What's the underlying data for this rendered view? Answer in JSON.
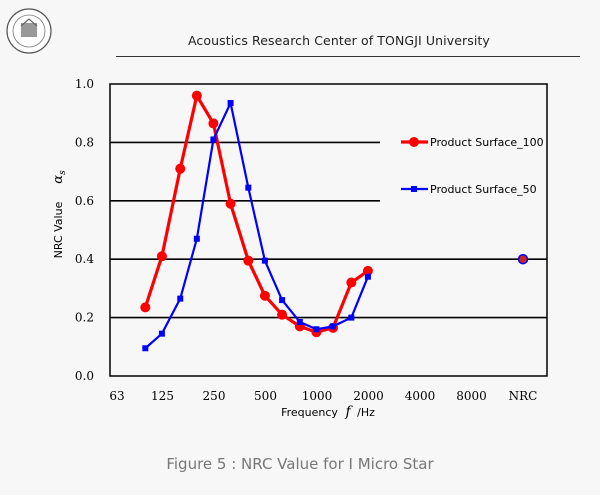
{
  "header": {
    "title": "Acoustics Research Center of TONGJI University",
    "logo_text": "TONGJI UNIVERSITY"
  },
  "caption": "Figure 5 : NRC Value for I Micro Star",
  "colors": {
    "series_100": "#ff0000",
    "series_50": "#0000ff",
    "nrc_point": "#0000ff",
    "nrc_point_fill": "#cc2222",
    "grid": "#000000"
  },
  "chart_data": {
    "type": "line",
    "xlabel_prefix": "Frequency",
    "xlabel_var": "f",
    "xlabel_unit": "/Hz",
    "ylabel": "NRC Value",
    "ylabel_symbol": "α",
    "ylabel_sub": "s",
    "ylim": [
      0,
      1.0
    ],
    "y_ticks": [
      "0.0",
      "0.2",
      "0.4",
      "0.6",
      "0.8",
      "1.0"
    ],
    "x_ticks": [
      "63",
      "125",
      "250",
      "500",
      "1000",
      "2000",
      "4000",
      "8000",
      "NRC"
    ],
    "grid": "horizontal",
    "legend_position": "right",
    "series": [
      {
        "name": "Product Surface_100",
        "marker": "circle",
        "x": [
          100,
          125,
          160,
          200,
          250,
          315,
          400,
          500,
          630,
          800,
          1000,
          1250,
          1600,
          2000
        ],
        "values": [
          0.235,
          0.41,
          0.71,
          0.96,
          0.865,
          0.59,
          0.395,
          0.275,
          0.21,
          0.17,
          0.15,
          0.165,
          0.32,
          0.36
        ]
      },
      {
        "name": "Product Surface_50",
        "marker": "square",
        "x": [
          100,
          125,
          160,
          200,
          250,
          315,
          400,
          500,
          630,
          800,
          1000,
          1250,
          1600,
          2000
        ],
        "values": [
          0.095,
          0.145,
          0.265,
          0.47,
          0.81,
          0.935,
          0.645,
          0.395,
          0.26,
          0.185,
          0.16,
          0.17,
          0.2,
          0.34
        ]
      }
    ],
    "nrc_value": 0.4
  }
}
